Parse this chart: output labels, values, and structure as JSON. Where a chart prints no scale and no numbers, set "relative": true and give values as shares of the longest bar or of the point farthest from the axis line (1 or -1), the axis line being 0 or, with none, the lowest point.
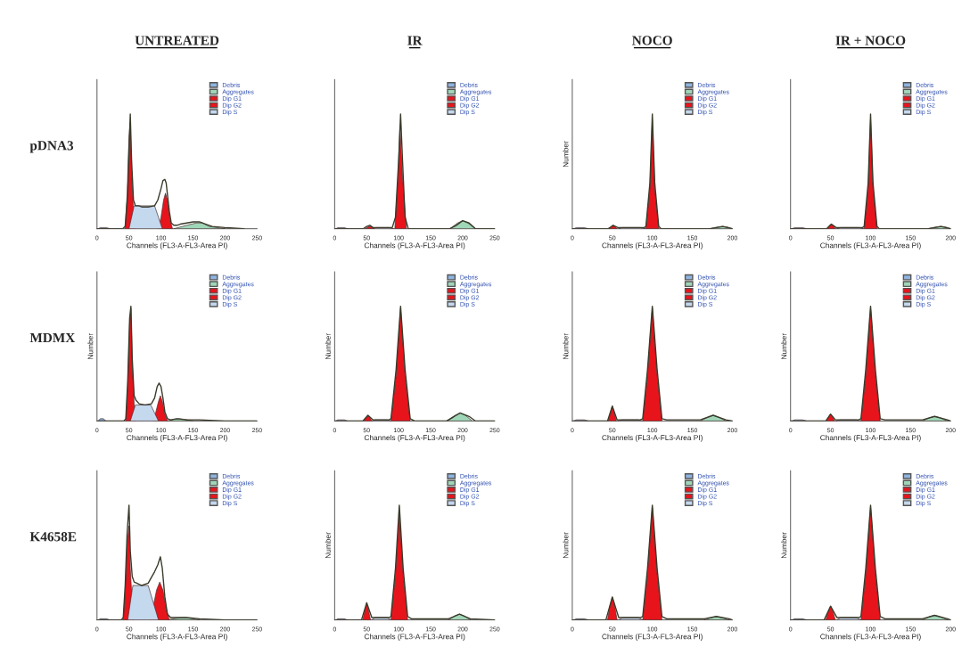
{
  "chart_data": [
    {
      "type": "area",
      "title": "UNTREATED",
      "xlabel": "Channels (FL3-A-FL3-Area PI)",
      "annotations": [
        "pDNA3"
      ],
      "relative": true,
      "xlim": [
        0,
        250
      ],
      "xticks": [
        0,
        50,
        100,
        150,
        200,
        250
      ],
      "tick_labels": "x",
      "legend": "top right",
      "series": [
        {
          "name": "Debris",
          "color": "#8fb4e0",
          "x": [
            2,
            5,
            15,
            20
          ],
          "values": [
            0,
            0.01,
            0.01,
            0
          ]
        },
        {
          "name": "Aggregates",
          "color": "#9fd6b8",
          "x": [
            120,
            140,
            155,
            165,
            175,
            200
          ],
          "values": [
            0,
            0.03,
            0.05,
            0.05,
            0.02,
            0
          ]
        },
        {
          "name": "Dip G1",
          "color": "#e8141c",
          "x": [
            44,
            47,
            50,
            52,
            54,
            57,
            60
          ],
          "values": [
            0,
            0.3,
            0.8,
            0.93,
            0.5,
            0.15,
            0
          ]
        },
        {
          "name": "Dip G2",
          "color": "#e8141c",
          "x": [
            96,
            100,
            104,
            107,
            110,
            114,
            118
          ],
          "values": [
            0,
            0.1,
            0.25,
            0.31,
            0.25,
            0.08,
            0
          ]
        },
        {
          "name": "Dip S",
          "color": "#c4d8ee",
          "x": [
            50,
            58,
            62,
            90,
            96,
            102
          ],
          "values": [
            0,
            0.2,
            0.2,
            0.2,
            0.1,
            0
          ]
        },
        {
          "type": "line",
          "color": "#3a3a2a",
          "x": [
            0,
            40,
            44,
            48,
            50,
            52,
            54,
            57,
            60,
            65,
            70,
            80,
            90,
            95,
            100,
            103,
            106,
            108,
            110,
            113,
            116,
            120,
            125,
            130,
            140,
            150,
            160,
            170,
            180,
            200,
            230
          ],
          "values": [
            0,
            0,
            0.02,
            0.3,
            0.7,
            1.0,
            0.6,
            0.25,
            0.2,
            0.2,
            0.19,
            0.19,
            0.2,
            0.25,
            0.35,
            0.42,
            0.43,
            0.4,
            0.3,
            0.15,
            0.05,
            0.03,
            0.03,
            0.04,
            0.05,
            0.06,
            0.06,
            0.04,
            0.02,
            0.01,
            0
          ]
        }
      ]
    },
    {
      "type": "area",
      "title": "IR",
      "xlabel": "Channels (FL3-A-FL3-Area PI)",
      "relative": true,
      "xlim": [
        0,
        250
      ],
      "xticks": [
        0,
        50,
        100,
        150,
        200,
        250
      ],
      "tick_labels": "x",
      "legend": "top right",
      "series": [
        {
          "name": "Debris",
          "color": "#8fb4e0",
          "x": [
            2,
            5,
            15,
            20
          ],
          "values": [
            0,
            0.01,
            0.01,
            0
          ]
        },
        {
          "name": "Aggregates",
          "color": "#9fd6b8",
          "x": [
            180,
            192,
            200,
            208,
            220
          ],
          "values": [
            0,
            0.05,
            0.07,
            0.05,
            0
          ]
        },
        {
          "name": "Dip G1",
          "color": "#e8141c",
          "x": [
            48,
            52,
            55,
            58,
            62
          ],
          "values": [
            0,
            0.015,
            0.02,
            0.015,
            0
          ]
        },
        {
          "name": "Dip G2",
          "color": "#e8141c",
          "x": [
            94,
            99,
            102,
            106,
            112
          ],
          "values": [
            0,
            0.45,
            0.9,
            0.45,
            0
          ]
        },
        {
          "name": "Dip S",
          "color": "#c4d8ee",
          "x": [
            60,
            65,
            85,
            92
          ],
          "values": [
            0,
            0.01,
            0.01,
            0
          ]
        },
        {
          "type": "line",
          "color": "#3a3a2a",
          "x": [
            0,
            45,
            50,
            55,
            60,
            90,
            95,
            100,
            103,
            106,
            110,
            115,
            180,
            190,
            200,
            210,
            220,
            250
          ],
          "values": [
            0,
            0,
            0.02,
            0.03,
            0.01,
            0.01,
            0.1,
            0.6,
            1.0,
            0.6,
            0.1,
            0,
            0,
            0.03,
            0.07,
            0.05,
            0,
            0
          ]
        }
      ]
    },
    {
      "type": "area",
      "title": "NOCO",
      "xlabel": "Channels (FL3-A-FL3-Area PI)",
      "ylabel": "Number",
      "relative": true,
      "xlim": [
        0,
        200
      ],
      "xticks": [
        0,
        50,
        100,
        150,
        200
      ],
      "tick_labels": "x",
      "legend": "top right",
      "series": [
        {
          "name": "Debris",
          "color": "#8fb4e0",
          "x": [
            2,
            5,
            15,
            20
          ],
          "values": [
            0,
            0.01,
            0.01,
            0
          ]
        },
        {
          "name": "Aggregates",
          "color": "#9fd6b8",
          "x": [
            172,
            182,
            188,
            194,
            200
          ],
          "values": [
            0,
            0.015,
            0.02,
            0.015,
            0
          ]
        },
        {
          "name": "Dip G1",
          "color": "#e8141c",
          "x": [
            46,
            49,
            51,
            53,
            56
          ],
          "values": [
            0,
            0.02,
            0.03,
            0.02,
            0
          ]
        },
        {
          "name": "Dip G2",
          "color": "#e8141c",
          "x": [
            92,
            97,
            100,
            103,
            108
          ],
          "values": [
            0,
            0.35,
            0.95,
            0.35,
            0
          ]
        },
        {
          "name": "Dip S",
          "color": "#c4d8ee",
          "x": [
            58,
            63,
            85,
            91
          ],
          "values": [
            0,
            0.01,
            0.01,
            0
          ]
        },
        {
          "type": "line",
          "color": "#3a3a2a",
          "x": [
            0,
            45,
            51,
            57,
            90,
            92,
            97,
            100,
            103,
            108,
            111,
            172,
            188,
            200
          ],
          "values": [
            0,
            0,
            0.03,
            0.01,
            0.01,
            0.02,
            0.4,
            1.0,
            0.4,
            0.02,
            0,
            0,
            0.02,
            0
          ]
        }
      ]
    },
    {
      "type": "area",
      "title": "IR + NOCO",
      "xlabel": "Channels (FL3-A-FL3-Area PI)",
      "relative": true,
      "xlim": [
        0,
        200
      ],
      "xticks": [
        0,
        50,
        100,
        150,
        200
      ],
      "tick_labels": "x",
      "legend": "top right",
      "series": [
        {
          "name": "Debris",
          "color": "#8fb4e0",
          "x": [
            2,
            5,
            15,
            20
          ],
          "values": [
            0,
            0.01,
            0.01,
            0
          ]
        },
        {
          "name": "Aggregates",
          "color": "#9fd6b8",
          "x": [
            172,
            182,
            188,
            194,
            200
          ],
          "values": [
            0,
            0.015,
            0.02,
            0.015,
            0
          ]
        },
        {
          "name": "Dip G1",
          "color": "#e8141c",
          "x": [
            46,
            49,
            51,
            53,
            56
          ],
          "values": [
            0,
            0.03,
            0.04,
            0.03,
            0
          ]
        },
        {
          "name": "Dip G2",
          "color": "#e8141c",
          "x": [
            92,
            97,
            100,
            103,
            108
          ],
          "values": [
            0,
            0.35,
            0.95,
            0.35,
            0
          ]
        },
        {
          "name": "Dip S",
          "color": "#c4d8ee",
          "x": [
            58,
            63,
            85,
            91
          ],
          "values": [
            0,
            0.01,
            0.01,
            0
          ]
        },
        {
          "type": "line",
          "color": "#3a3a2a",
          "x": [
            0,
            45,
            51,
            57,
            90,
            92,
            97,
            100,
            103,
            108,
            111,
            172,
            188,
            200
          ],
          "values": [
            0,
            0,
            0.04,
            0.01,
            0.01,
            0.02,
            0.4,
            1.0,
            0.4,
            0.02,
            0,
            0,
            0.02,
            0
          ]
        }
      ]
    },
    {
      "type": "area",
      "xlabel": "Channels (FL3-A-FL3-Area PI)",
      "ylabel": "Number",
      "annotations": [
        "MDMX"
      ],
      "relative": true,
      "xlim": [
        0,
        250
      ],
      "xticks": [
        0,
        50,
        100,
        150,
        200,
        250
      ],
      "tick_labels": "x",
      "legend": "top right",
      "series": [
        {
          "name": "Debris",
          "color": "#8fb4e0",
          "x": [
            2,
            5,
            10,
            14
          ],
          "values": [
            0,
            0.02,
            0.02,
            0
          ]
        },
        {
          "name": "Aggregates",
          "color": "#9fd6b8",
          "x": [
            110,
            120,
            128,
            136,
            150
          ],
          "values": [
            0,
            0.015,
            0.02,
            0.015,
            0
          ]
        },
        {
          "name": "Dip G1",
          "color": "#e8141c",
          "x": [
            45,
            48,
            51,
            53,
            55,
            58,
            61
          ],
          "values": [
            0,
            0.3,
            0.85,
            0.98,
            0.5,
            0.15,
            0
          ]
        },
        {
          "name": "Dip G2",
          "color": "#e8141c",
          "x": [
            88,
            92,
            96,
            99,
            102,
            106,
            110
          ],
          "values": [
            0,
            0.08,
            0.17,
            0.22,
            0.17,
            0.06,
            0
          ]
        },
        {
          "name": "Dip S",
          "color": "#c4d8ee",
          "x": [
            52,
            60,
            64,
            84,
            90,
            96
          ],
          "values": [
            0,
            0.14,
            0.14,
            0.14,
            0.07,
            0
          ]
        },
        {
          "type": "line",
          "color": "#3a3a2a",
          "x": [
            0,
            42,
            45,
            48,
            51,
            53,
            55,
            58,
            61,
            66,
            75,
            85,
            90,
            94,
            97,
            100,
            103,
            106,
            110,
            115,
            125,
            140,
            160,
            200,
            250
          ],
          "values": [
            0,
            0,
            0.02,
            0.35,
            0.9,
            1.0,
            0.55,
            0.22,
            0.18,
            0.15,
            0.14,
            0.15,
            0.2,
            0.3,
            0.33,
            0.3,
            0.2,
            0.08,
            0.02,
            0.01,
            0.02,
            0.01,
            0.01,
            0,
            0
          ]
        }
      ]
    },
    {
      "type": "area",
      "xlabel": "Channels (FL3-A-FL3-Area PI)",
      "ylabel": "Number",
      "relative": true,
      "xlim": [
        0,
        250
      ],
      "xticks": [
        0,
        50,
        100,
        150,
        200,
        250
      ],
      "tick_labels": "x",
      "legend": "top right",
      "series": [
        {
          "name": "Debris",
          "color": "#8fb4e0",
          "x": [
            2,
            5,
            15,
            20
          ],
          "values": [
            0,
            0.01,
            0.01,
            0
          ]
        },
        {
          "name": "Aggregates",
          "color": "#9fd6b8",
          "x": [
            175,
            188,
            196,
            204,
            215
          ],
          "values": [
            0,
            0.05,
            0.07,
            0.05,
            0
          ]
        },
        {
          "name": "Dip G1",
          "color": "#e8141c",
          "x": [
            46,
            49,
            52,
            55,
            58
          ],
          "values": [
            0,
            0.03,
            0.05,
            0.03,
            0
          ]
        },
        {
          "name": "Dip G2",
          "color": "#e8141c",
          "x": [
            88,
            96,
            103,
            110,
            118
          ],
          "values": [
            0,
            0.4,
            0.98,
            0.4,
            0
          ]
        },
        {
          "name": "Dip S",
          "color": "#c4d8ee",
          "x": [
            58,
            63,
            82,
            88
          ],
          "values": [
            0,
            0.01,
            0.01,
            0
          ]
        },
        {
          "type": "line",
          "color": "#3a3a2a",
          "x": [
            0,
            44,
            52,
            60,
            85,
            88,
            96,
            103,
            110,
            118,
            125,
            175,
            190,
            196,
            210,
            220,
            250
          ],
          "values": [
            0,
            0,
            0.05,
            0.01,
            0.01,
            0.02,
            0.45,
            1.0,
            0.45,
            0.02,
            0,
            0,
            0.05,
            0.07,
            0.04,
            0,
            0
          ]
        }
      ]
    },
    {
      "type": "area",
      "xlabel": "Channels (FL3-A-FL3-Area PI)",
      "ylabel": "Number",
      "relative": true,
      "xlim": [
        0,
        200
      ],
      "xticks": [
        0,
        50,
        100,
        150,
        200
      ],
      "tick_labels": "x",
      "legend": "top right",
      "series": [
        {
          "name": "Debris",
          "color": "#8fb4e0",
          "x": [
            2,
            5,
            15,
            20
          ],
          "values": [
            0,
            0.01,
            0.01,
            0
          ]
        },
        {
          "name": "Aggregates",
          "color": "#9fd6b8",
          "x": [
            160,
            170,
            176,
            182,
            192
          ],
          "values": [
            0,
            0.035,
            0.05,
            0.035,
            0
          ]
        },
        {
          "name": "Dip G1",
          "color": "#e8141c",
          "x": [
            45,
            48,
            50,
            52,
            55
          ],
          "values": [
            0,
            0.08,
            0.13,
            0.08,
            0
          ]
        },
        {
          "name": "Dip G2",
          "color": "#e8141c",
          "x": [
            88,
            94,
            100,
            106,
            112
          ],
          "values": [
            0,
            0.4,
            0.98,
            0.4,
            0
          ]
        },
        {
          "name": "Dip S",
          "color": "#c4d8ee",
          "x": [
            57,
            62,
            82,
            88
          ],
          "values": [
            0,
            0.01,
            0.01,
            0
          ]
        },
        {
          "type": "line",
          "color": "#3a3a2a",
          "x": [
            0,
            44,
            50,
            56,
            85,
            88,
            94,
            100,
            106,
            112,
            118,
            160,
            176,
            192,
            200
          ],
          "values": [
            0,
            0,
            0.13,
            0.01,
            0.01,
            0.02,
            0.45,
            1.0,
            0.45,
            0.02,
            0.01,
            0.01,
            0.05,
            0.01,
            0
          ]
        }
      ]
    },
    {
      "type": "area",
      "xlabel": "Channels (FL3-A-FL3-Area PI)",
      "ylabel": "Number",
      "relative": true,
      "xlim": [
        0,
        200
      ],
      "xticks": [
        0,
        50,
        100,
        150,
        200
      ],
      "tick_labels": "x",
      "legend": "top right",
      "series": [
        {
          "name": "Debris",
          "color": "#8fb4e0",
          "x": [
            2,
            5,
            15,
            20
          ],
          "values": [
            0,
            0.01,
            0.01,
            0
          ]
        },
        {
          "name": "Aggregates",
          "color": "#9fd6b8",
          "x": [
            165,
            174,
            180,
            186,
            196
          ],
          "values": [
            0,
            0.03,
            0.04,
            0.03,
            0
          ]
        },
        {
          "name": "Dip G1",
          "color": "#e8141c",
          "x": [
            45,
            48,
            50,
            52,
            55
          ],
          "values": [
            0,
            0.04,
            0.06,
            0.04,
            0
          ]
        },
        {
          "name": "Dip G2",
          "color": "#e8141c",
          "x": [
            88,
            94,
            100,
            106,
            112
          ],
          "values": [
            0,
            0.4,
            0.98,
            0.4,
            0
          ]
        },
        {
          "name": "Dip S",
          "color": "#c4d8ee",
          "x": [
            57,
            62,
            82,
            88
          ],
          "values": [
            0,
            0.01,
            0.01,
            0
          ]
        },
        {
          "type": "line",
          "color": "#3a3a2a",
          "x": [
            0,
            44,
            50,
            56,
            85,
            88,
            94,
            100,
            106,
            112,
            118,
            165,
            180,
            196,
            200
          ],
          "values": [
            0,
            0,
            0.06,
            0.01,
            0.01,
            0.02,
            0.45,
            1.0,
            0.45,
            0.02,
            0.01,
            0.01,
            0.04,
            0.01,
            0
          ]
        }
      ]
    },
    {
      "type": "area",
      "xlabel": "Channels (FL3-A-FL3-Area PI)",
      "annotations": [
        "K4658E"
      ],
      "relative": true,
      "xlim": [
        0,
        250
      ],
      "xticks": [
        0,
        50,
        100,
        150,
        200,
        250
      ],
      "tick_labels": "x",
      "legend": "top right",
      "series": [
        {
          "name": "Debris",
          "color": "#8fb4e0",
          "x": [
            2,
            5,
            15,
            20
          ],
          "values": [
            0,
            0.01,
            0.01,
            0
          ]
        },
        {
          "name": "Aggregates",
          "color": "#9fd6b8",
          "x": [
            110,
            125,
            135,
            145,
            160
          ],
          "values": [
            0,
            0.015,
            0.02,
            0.015,
            0
          ]
        },
        {
          "name": "Dip G1",
          "color": "#e8141c",
          "x": [
            41,
            44,
            47,
            50,
            52,
            55,
            58
          ],
          "values": [
            0,
            0.25,
            0.65,
            0.82,
            0.45,
            0.15,
            0
          ]
        },
        {
          "name": "Dip G2",
          "color": "#e8141c",
          "x": [
            82,
            88,
            93,
            98,
            103,
            108,
            113
          ],
          "values": [
            0,
            0.12,
            0.26,
            0.33,
            0.26,
            0.1,
            0
          ]
        },
        {
          "name": "Dip S",
          "color": "#c4d8ee",
          "x": [
            48,
            56,
            60,
            80,
            88,
            96
          ],
          "values": [
            0,
            0.3,
            0.3,
            0.3,
            0.15,
            0
          ]
        },
        {
          "type": "line",
          "color": "#3a3a2a",
          "x": [
            0,
            38,
            41,
            44,
            47,
            50,
            52,
            55,
            58,
            62,
            70,
            80,
            86,
            90,
            95,
            99,
            102,
            106,
            110,
            115,
            125,
            140,
            160,
            200,
            250
          ],
          "values": [
            0,
            0,
            0.02,
            0.3,
            0.75,
            1.0,
            0.6,
            0.38,
            0.33,
            0.32,
            0.3,
            0.32,
            0.38,
            0.42,
            0.48,
            0.55,
            0.45,
            0.2,
            0.05,
            0.02,
            0.02,
            0.02,
            0.01,
            0,
            0
          ]
        }
      ]
    },
    {
      "type": "area",
      "xlabel": "Channels (FL3-A-FL3-Area PI)",
      "ylabel": "Number",
      "relative": true,
      "xlim": [
        0,
        250
      ],
      "xticks": [
        0,
        50,
        100,
        150,
        200,
        250
      ],
      "tick_labels": "x",
      "legend": "top right",
      "series": [
        {
          "name": "Debris",
          "color": "#8fb4e0",
          "x": [
            2,
            5,
            15,
            20
          ],
          "values": [
            0,
            0.01,
            0.01,
            0
          ]
        },
        {
          "name": "Aggregates",
          "color": "#9fd6b8",
          "x": [
            178,
            188,
            195,
            202,
            212
          ],
          "values": [
            0,
            0.035,
            0.05,
            0.035,
            0
          ]
        },
        {
          "name": "Dip G1",
          "color": "#e8141c",
          "x": [
            44,
            47,
            50,
            53,
            56
          ],
          "values": [
            0,
            0.08,
            0.14,
            0.08,
            0
          ]
        },
        {
          "name": "Dip G2",
          "color": "#e8141c",
          "x": [
            88,
            95,
            101,
            107,
            114
          ],
          "values": [
            0,
            0.4,
            0.93,
            0.4,
            0
          ]
        },
        {
          "name": "Dip S",
          "color": "#c4d8ee",
          "x": [
            58,
            63,
            82,
            88
          ],
          "values": [
            0,
            0.02,
            0.02,
            0
          ]
        },
        {
          "type": "line",
          "color": "#3a3a2a",
          "x": [
            0,
            42,
            50,
            58,
            85,
            88,
            95,
            101,
            107,
            114,
            120,
            178,
            195,
            212,
            250
          ],
          "values": [
            0,
            0,
            0.15,
            0.02,
            0.02,
            0.03,
            0.45,
            1.0,
            0.45,
            0.03,
            0.01,
            0.01,
            0.05,
            0.01,
            0
          ]
        }
      ]
    },
    {
      "type": "area",
      "xlabel": "Channels (FL3-A-FL3-Area PI)",
      "ylabel": "Number",
      "relative": true,
      "xlim": [
        0,
        200
      ],
      "xticks": [
        0,
        50,
        100,
        150,
        200
      ],
      "tick_labels": "x",
      "legend": "top right",
      "series": [
        {
          "name": "Debris",
          "color": "#8fb4e0",
          "x": [
            2,
            5,
            15,
            20
          ],
          "values": [
            0,
            0.01,
            0.01,
            0
          ]
        },
        {
          "name": "Aggregates",
          "color": "#9fd6b8",
          "x": [
            165,
            174,
            180,
            186,
            196
          ],
          "values": [
            0,
            0.02,
            0.03,
            0.02,
            0
          ]
        },
        {
          "name": "Dip G1",
          "color": "#e8141c",
          "x": [
            44,
            47,
            50,
            53,
            56
          ],
          "values": [
            0,
            0.12,
            0.2,
            0.12,
            0
          ]
        },
        {
          "name": "Dip G2",
          "color": "#e8141c",
          "x": [
            88,
            94,
            100,
            106,
            112
          ],
          "values": [
            0,
            0.4,
            0.98,
            0.4,
            0
          ]
        },
        {
          "name": "Dip S",
          "color": "#c4d8ee",
          "x": [
            58,
            63,
            82,
            88
          ],
          "values": [
            0,
            0.02,
            0.02,
            0
          ]
        },
        {
          "type": "line",
          "color": "#3a3a2a",
          "x": [
            0,
            42,
            50,
            58,
            85,
            88,
            94,
            100,
            106,
            112,
            118,
            165,
            180,
            196,
            200
          ],
          "values": [
            0,
            0,
            0.2,
            0.02,
            0.02,
            0.03,
            0.45,
            1.0,
            0.45,
            0.03,
            0.01,
            0.01,
            0.03,
            0.01,
            0
          ]
        }
      ]
    },
    {
      "type": "area",
      "xlabel": "Channels (FL3-A-FL3-Area PI)",
      "ylabel": "Number",
      "relative": true,
      "xlim": [
        0,
        200
      ],
      "xticks": [
        0,
        50,
        100,
        150,
        200
      ],
      "tick_labels": "x",
      "legend": "top right",
      "series": [
        {
          "name": "Debris",
          "color": "#8fb4e0",
          "x": [
            2,
            5,
            15,
            20
          ],
          "values": [
            0,
            0.01,
            0.01,
            0
          ]
        },
        {
          "name": "Aggregates",
          "color": "#9fd6b8",
          "x": [
            165,
            174,
            180,
            186,
            196
          ],
          "values": [
            0,
            0.03,
            0.04,
            0.03,
            0
          ]
        },
        {
          "name": "Dip G1",
          "color": "#e8141c",
          "x": [
            44,
            47,
            50,
            53,
            56
          ],
          "values": [
            0,
            0.07,
            0.12,
            0.07,
            0
          ]
        },
        {
          "name": "Dip G2",
          "color": "#e8141c",
          "x": [
            88,
            94,
            100,
            106,
            112
          ],
          "values": [
            0,
            0.4,
            0.98,
            0.4,
            0
          ]
        },
        {
          "name": "Dip S",
          "color": "#c4d8ee",
          "x": [
            58,
            63,
            82,
            88
          ],
          "values": [
            0,
            0.02,
            0.02,
            0
          ]
        },
        {
          "type": "line",
          "color": "#3a3a2a",
          "x": [
            0,
            42,
            50,
            58,
            85,
            88,
            94,
            100,
            106,
            112,
            118,
            165,
            180,
            196,
            200
          ],
          "values": [
            0,
            0,
            0.12,
            0.02,
            0.02,
            0.03,
            0.45,
            1.0,
            0.45,
            0.03,
            0.01,
            0.01,
            0.04,
            0.01,
            0
          ]
        }
      ]
    }
  ]
}
